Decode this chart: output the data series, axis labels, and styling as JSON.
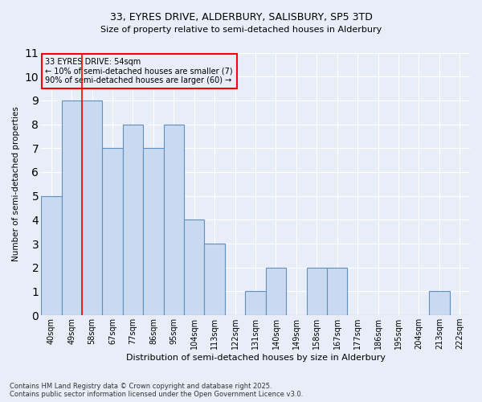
{
  "title1": "33, EYRES DRIVE, ALDERBURY, SALISBURY, SP5 3TD",
  "title2": "Size of property relative to semi-detached houses in Alderbury",
  "xlabel": "Distribution of semi-detached houses by size in Alderbury",
  "ylabel": "Number of semi-detached properties",
  "categories": [
    "40sqm",
    "49sqm",
    "58sqm",
    "67sqm",
    "77sqm",
    "86sqm",
    "95sqm",
    "104sqm",
    "113sqm",
    "122sqm",
    "131sqm",
    "140sqm",
    "149sqm",
    "158sqm",
    "167sqm",
    "177sqm",
    "186sqm",
    "195sqm",
    "204sqm",
    "213sqm",
    "222sqm"
  ],
  "values": [
    5,
    9,
    9,
    7,
    8,
    7,
    8,
    4,
    3,
    0,
    1,
    2,
    0,
    2,
    2,
    0,
    0,
    0,
    0,
    1,
    0
  ],
  "bar_color": "#c9d9f0",
  "bar_edge_color": "#6090c0",
  "red_line_x": 1.5,
  "annotation_text": "33 EYRES DRIVE: 54sqm\n← 10% of semi-detached houses are smaller (7)\n90% of semi-detached houses are larger (60) →",
  "footer": "Contains HM Land Registry data © Crown copyright and database right 2025.\nContains public sector information licensed under the Open Government Licence v3.0.",
  "ylim": [
    0,
    11
  ],
  "yticks": [
    0,
    1,
    2,
    3,
    4,
    5,
    6,
    7,
    8,
    9,
    10,
    11
  ],
  "bg_color": "#e8eef8",
  "grid_color": "#ffffff"
}
